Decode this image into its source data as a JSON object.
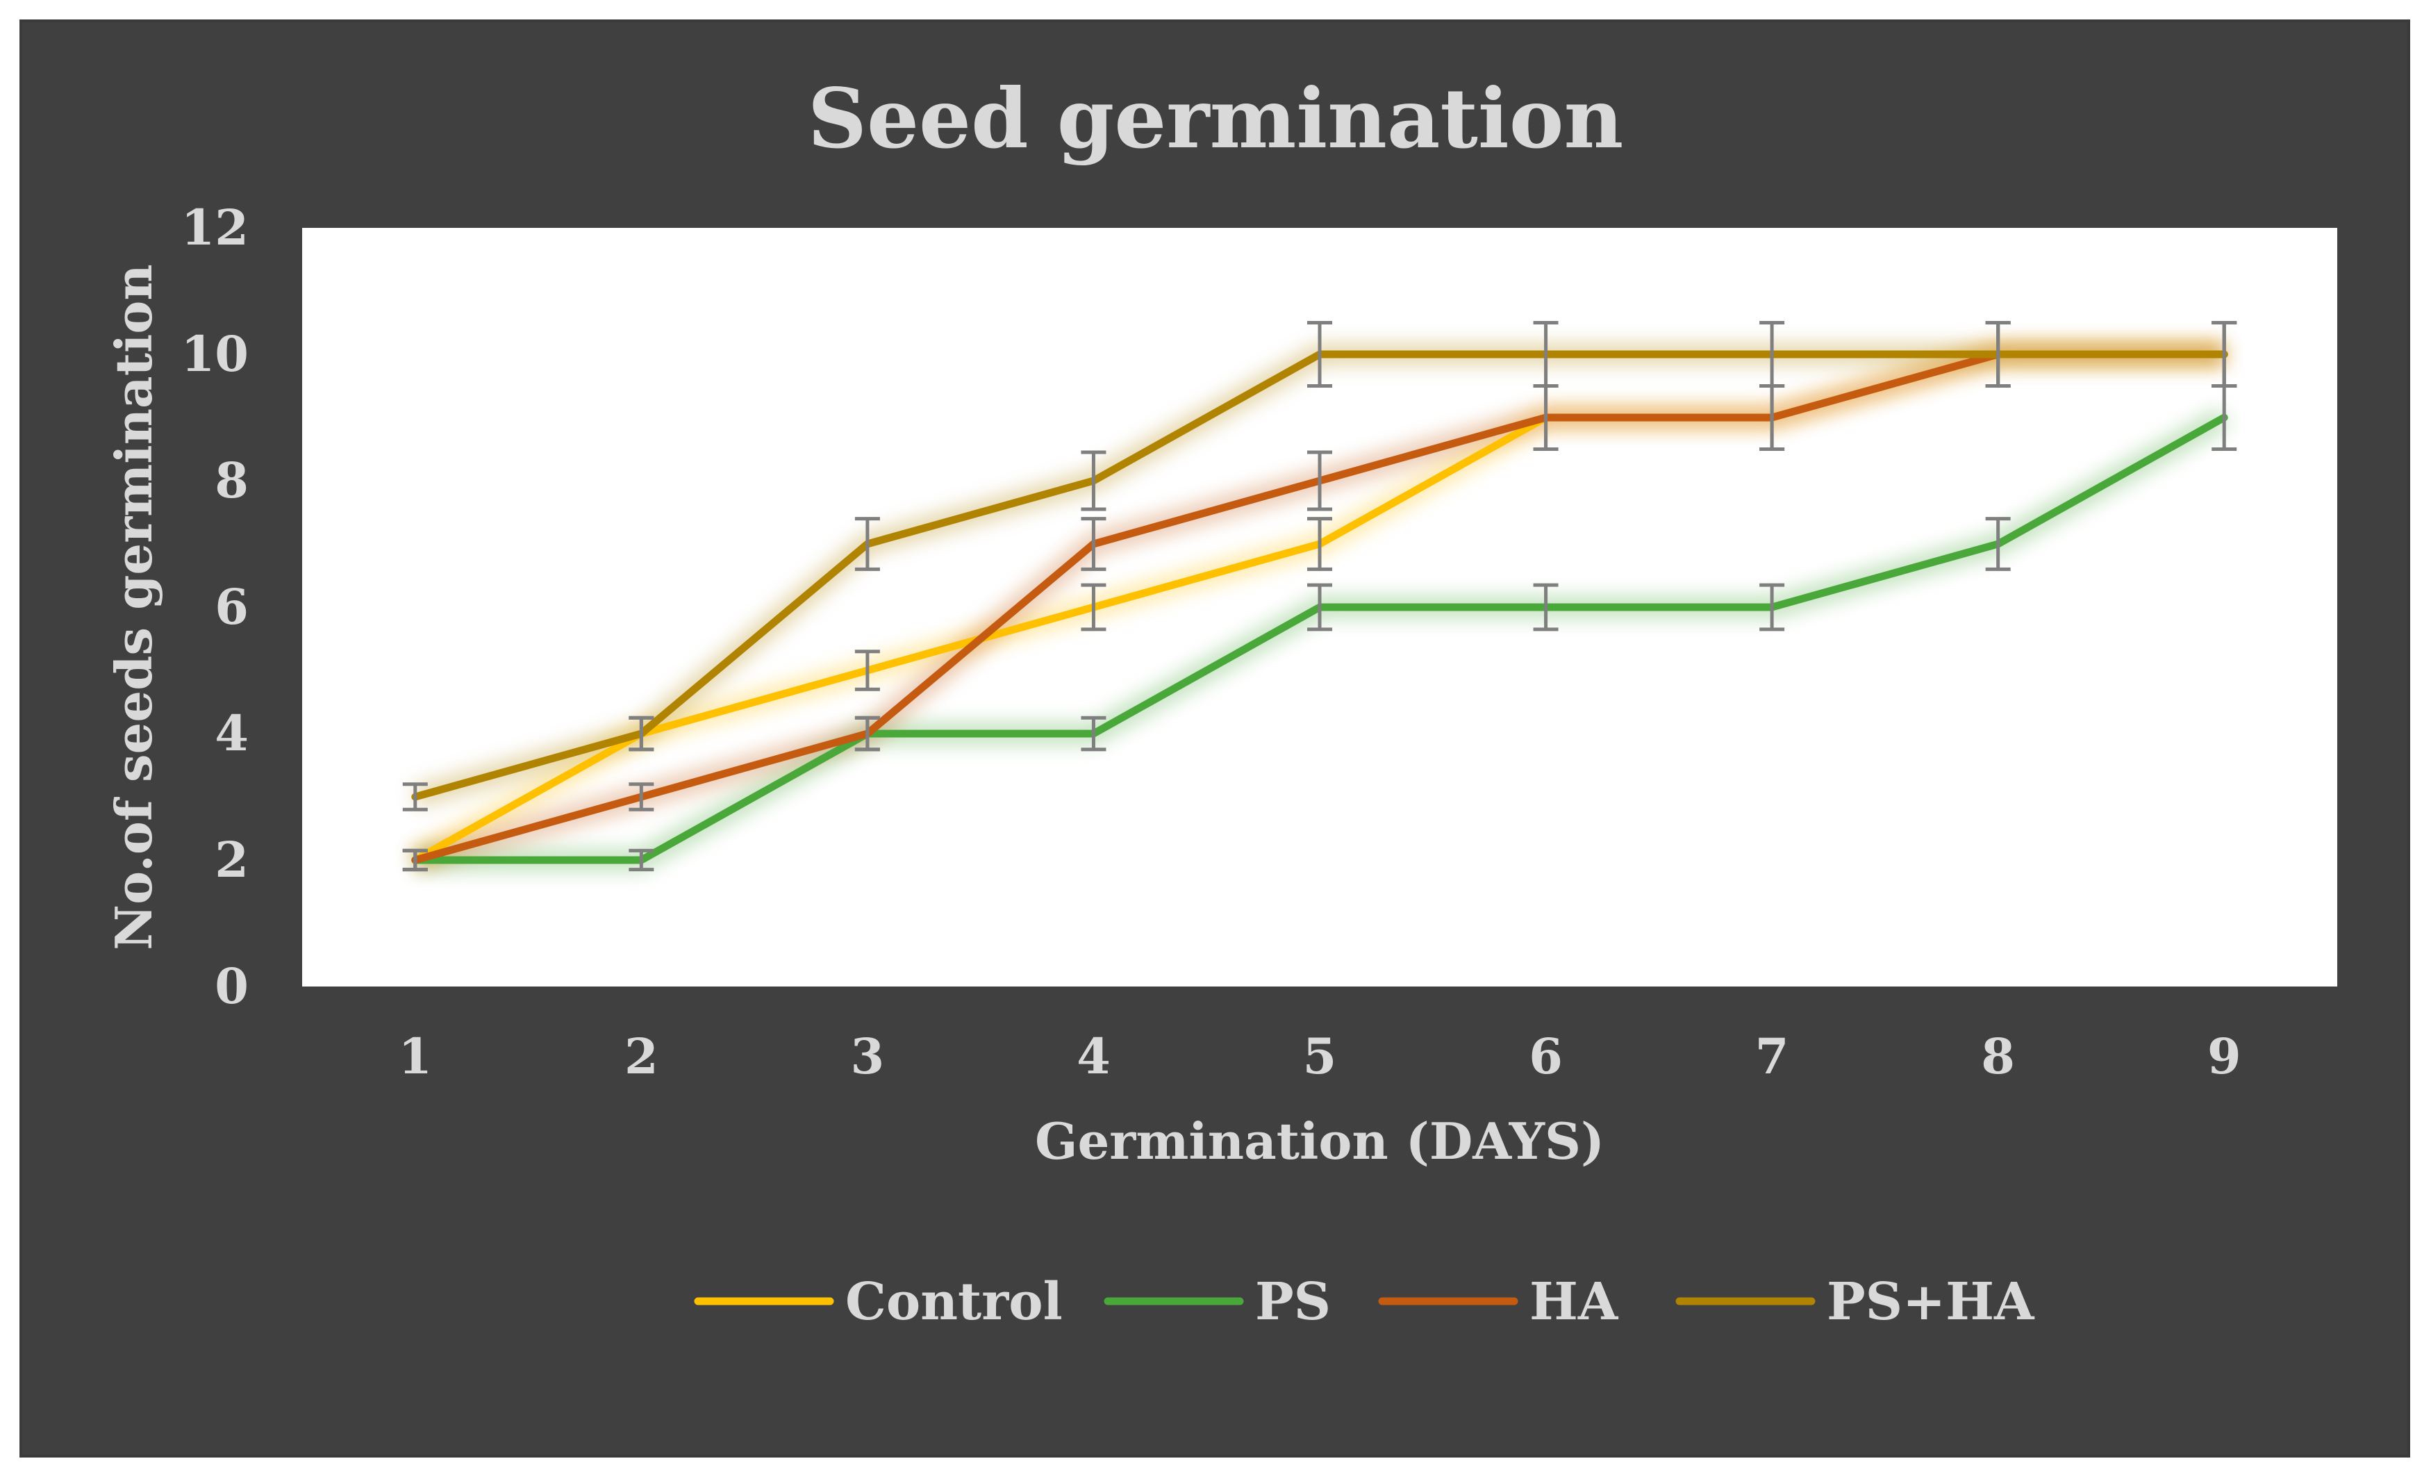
{
  "chart_data": {
    "type": "line",
    "title": "Seed germination",
    "xlabel": "Germination (DAYS)",
    "ylabel": "No.of seeds germination",
    "categories": [
      "1",
      "2",
      "3",
      "4",
      "5",
      "6",
      "7",
      "8",
      "9"
    ],
    "ylim": [
      0,
      12
    ],
    "yticks": [
      "0",
      "2",
      "4",
      "6",
      "8",
      "10",
      "12"
    ],
    "error_bars": true,
    "error_magnitude": 0.5,
    "legend_position": "bottom",
    "series": [
      {
        "name": "Control",
        "color": "#ffc000",
        "values": [
          2,
          4,
          5,
          6,
          7,
          9,
          9,
          10,
          10
        ]
      },
      {
        "name": "PS",
        "color": "#4aa83a",
        "values": [
          2,
          2,
          4,
          4,
          6,
          6,
          6,
          7,
          9
        ]
      },
      {
        "name": "HA",
        "color": "#c55a11",
        "values": [
          2,
          3,
          4,
          7,
          8,
          9,
          9,
          10,
          10
        ]
      },
      {
        "name": "PS+HA",
        "color": "#b08400",
        "values": [
          3,
          4,
          7,
          8,
          10,
          10,
          10,
          10,
          10
        ]
      }
    ]
  }
}
